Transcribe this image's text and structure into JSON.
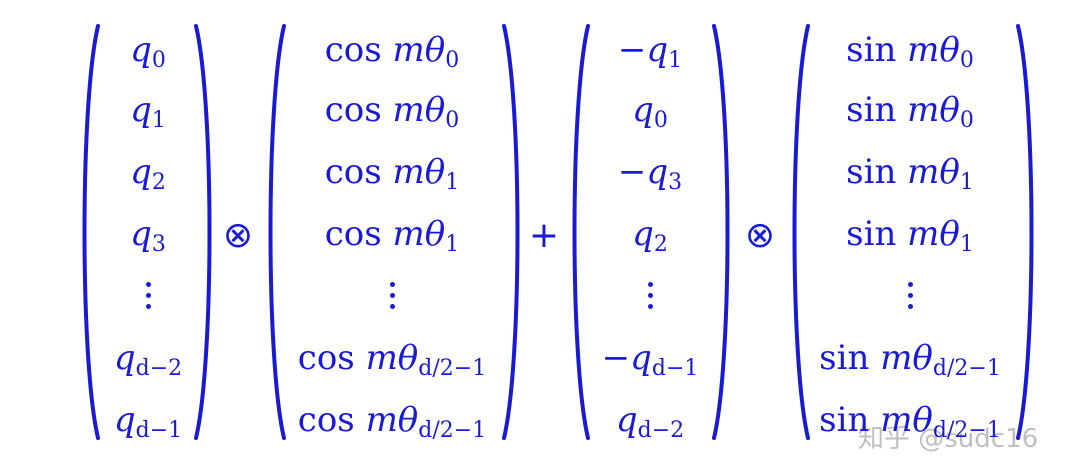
{
  "equation": {
    "op_tensor": "⊗",
    "op_plus": "+",
    "matrices": [
      {
        "name": "q",
        "rows": [
          {
            "sign": "",
            "func": "",
            "var": "q",
            "sub": "0"
          },
          {
            "sign": "",
            "func": "",
            "var": "q",
            "sub": "1"
          },
          {
            "sign": "",
            "func": "",
            "var": "q",
            "sub": "2"
          },
          {
            "sign": "",
            "func": "",
            "var": "q",
            "sub": "3"
          },
          {
            "dots": true
          },
          {
            "sign": "",
            "func": "",
            "var": "q",
            "sub": "d−2"
          },
          {
            "sign": "",
            "func": "",
            "var": "q",
            "sub": "d−1"
          }
        ]
      },
      {
        "name": "cos",
        "rows": [
          {
            "sign": "",
            "func": "cos ",
            "var": "mθ",
            "sub": "0"
          },
          {
            "sign": "",
            "func": "cos ",
            "var": "mθ",
            "sub": "0"
          },
          {
            "sign": "",
            "func": "cos ",
            "var": "mθ",
            "sub": "1"
          },
          {
            "sign": "",
            "func": "cos ",
            "var": "mθ",
            "sub": "1"
          },
          {
            "dots": true
          },
          {
            "sign": "",
            "func": "cos ",
            "var": "mθ",
            "sub": "d/2−1"
          },
          {
            "sign": "",
            "func": "cos ",
            "var": "mθ",
            "sub": "d/2−1"
          }
        ]
      },
      {
        "name": "q-rot",
        "rows": [
          {
            "sign": "−",
            "func": "",
            "var": "q",
            "sub": "1"
          },
          {
            "sign": "",
            "func": "",
            "var": "q",
            "sub": "0"
          },
          {
            "sign": "−",
            "func": "",
            "var": "q",
            "sub": "3"
          },
          {
            "sign": "",
            "func": "",
            "var": "q",
            "sub": "2"
          },
          {
            "dots": true
          },
          {
            "sign": "−",
            "func": "",
            "var": "q",
            "sub": "d−1"
          },
          {
            "sign": "",
            "func": "",
            "var": "q",
            "sub": "d−2"
          }
        ]
      },
      {
        "name": "sin",
        "rows": [
          {
            "sign": "",
            "func": "sin ",
            "var": "mθ",
            "sub": "0"
          },
          {
            "sign": "",
            "func": "sin ",
            "var": "mθ",
            "sub": "0"
          },
          {
            "sign": "",
            "func": "sin ",
            "var": "mθ",
            "sub": "1"
          },
          {
            "sign": "",
            "func": "sin ",
            "var": "mθ",
            "sub": "1"
          },
          {
            "dots": true
          },
          {
            "sign": "",
            "func": "sin ",
            "var": "mθ",
            "sub": "d/2−1"
          },
          {
            "sign": "",
            "func": "sin ",
            "var": "mθ",
            "sub": "d/2−1"
          }
        ]
      }
    ]
  },
  "watermark": "知乎 @sudc16",
  "colors": {
    "ink": "#1a1ad6",
    "watermark": "#aaaaaa",
    "background": "#ffffff"
  }
}
